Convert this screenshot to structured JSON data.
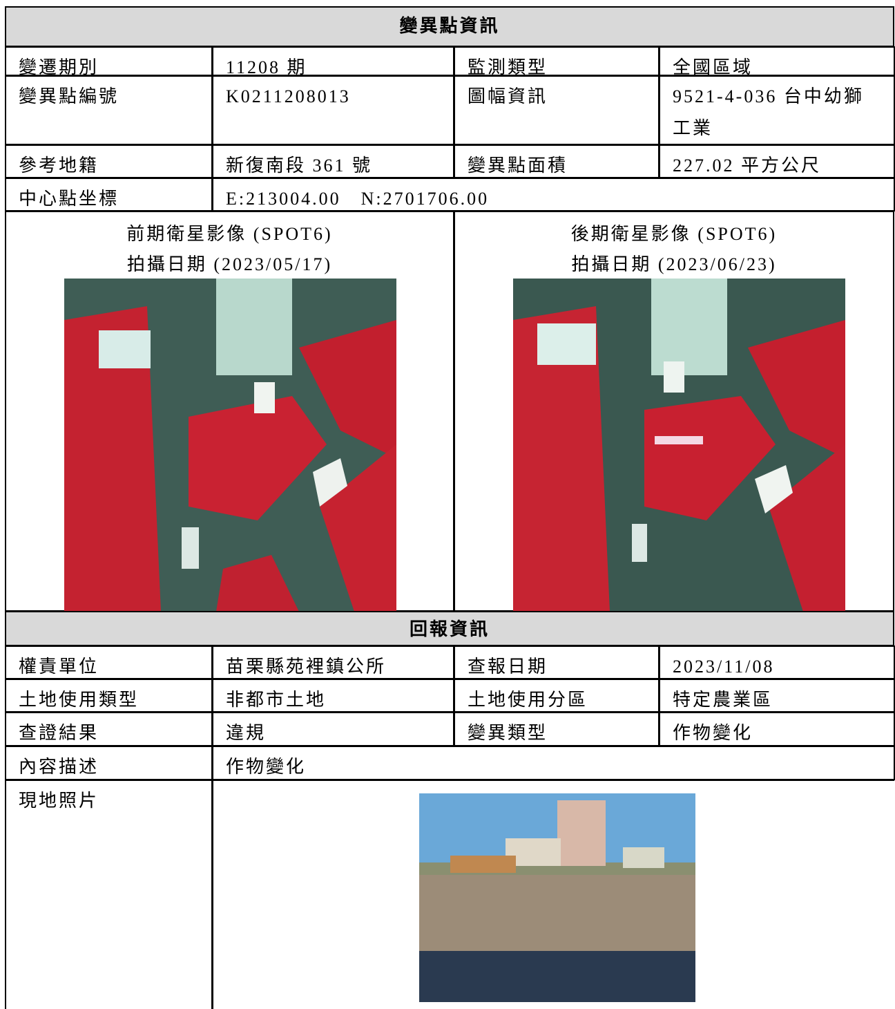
{
  "header": {
    "title": "變異點資訊"
  },
  "info": {
    "rows": [
      [
        "變遷期別",
        "11208 期",
        "監測類型",
        "全國區域"
      ],
      [
        "變異點編號",
        "K0211208013",
        "圖幅資訊",
        "9521-4-036 台中幼獅工業"
      ],
      [
        "參考地籍",
        "新復南段 361 號",
        "變異點面積",
        "227.02 平方公尺"
      ],
      [
        "中心點坐標",
        "E:213004.00　N:2701706.00"
      ]
    ]
  },
  "images": [
    {
      "title": "前期衛星影像 (SPOT6)",
      "date": "拍攝日期 (2023/05/17)"
    },
    {
      "title": "後期衛星影像 (SPOT6)",
      "date": "拍攝日期 (2023/06/23)"
    }
  ],
  "report": {
    "title": "回報資訊",
    "rows": [
      [
        "權責單位",
        "苗栗縣苑裡鎮公所",
        "查報日期",
        "2023/11/08"
      ],
      [
        "土地使用類型",
        "非都市土地",
        "土地使用分區",
        "特定農業區"
      ],
      [
        "查證結果",
        "違規",
        "變異類型",
        "作物變化"
      ],
      [
        "內容描述",
        "作物變化"
      ]
    ],
    "photo_label": "現地照片"
  }
}
